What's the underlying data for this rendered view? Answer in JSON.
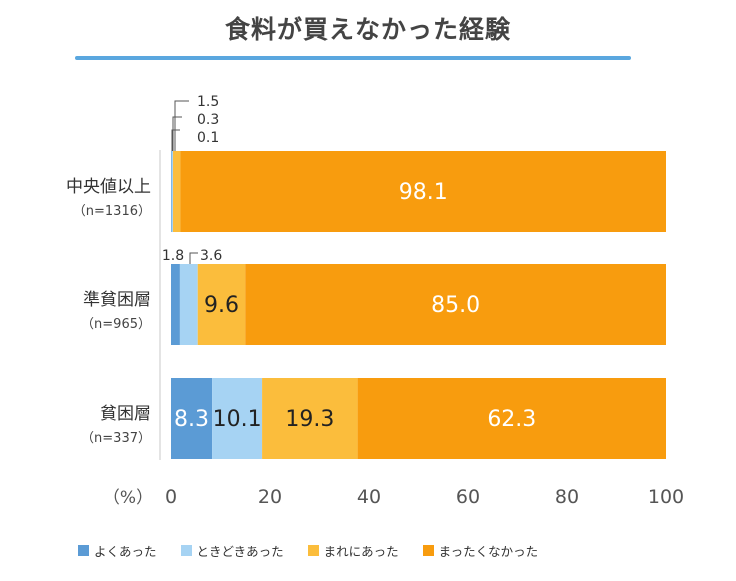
{
  "chart_data": {
    "type": "bar",
    "orientation": "horizontal-stacked",
    "title": "食料が買えなかった経験",
    "unit_label": "（%）",
    "xlim": [
      0,
      100
    ],
    "xticks": [
      0,
      20,
      40,
      60,
      80,
      100
    ],
    "categories": [
      {
        "label": "中央値以上",
        "n": "（n=1316）"
      },
      {
        "label": "準貧困層",
        "n": "（n=965）"
      },
      {
        "label": "貧困層",
        "n": "（n=337）"
      }
    ],
    "series": [
      {
        "name": "よくあった",
        "color": "#5b9bd5",
        "values": [
          0.1,
          1.8,
          8.3
        ]
      },
      {
        "name": "ときどきあった",
        "color": "#a6d3f3",
        "values": [
          0.3,
          3.6,
          10.1
        ]
      },
      {
        "name": "まれにあった",
        "color": "#fbbd3c",
        "values": [
          1.5,
          9.6,
          19.3
        ]
      },
      {
        "name": "まったくなかった",
        "color": "#f89c0e",
        "values": [
          98.1,
          85.0,
          62.3
        ]
      }
    ],
    "data_labels": [
      [
        "0.1",
        "0.3",
        "1.5",
        "98.1"
      ],
      [
        "1.8",
        "3.6",
        "9.6",
        "85.0"
      ],
      [
        "8.3",
        "10.1",
        "19.3",
        "62.3"
      ]
    ]
  }
}
